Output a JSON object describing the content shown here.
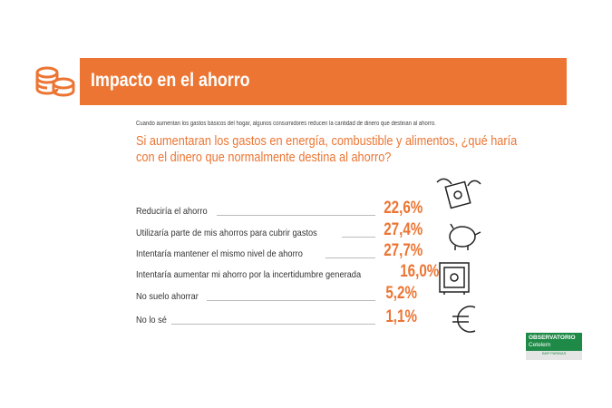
{
  "header": {
    "title": "Impacto en el ahorro"
  },
  "intro": "Cuando aumentan los gastos básicos del hogar, algunos consumidores reducen la cantidad de dinero que destinan al ahorro.",
  "question": "Si aumentaran los gastos en energía, combustible y alimentos, ¿qué haría con el dinero que normalmente destina al ahorro?",
  "rows": [
    {
      "label": "Reduciría el ahorro",
      "value": "22,6%"
    },
    {
      "label": "Utilizaría parte de mis ahorros para cubrir gastos",
      "value": "27,4%"
    },
    {
      "label": "Intentaría mantener el mismo nivel de ahorro",
      "value": "27,7%"
    },
    {
      "label": "Intentaría aumentar mi ahorro por la incertidumbre generada",
      "value": "16,0%"
    },
    {
      "label": "No suelo ahorrar",
      "value": "5,2%"
    },
    {
      "label": "No lo sé",
      "value": "1,1%"
    }
  ],
  "logo": {
    "line1": "OBSERVATORIO",
    "line2": "Cetelem",
    "line3": "BNP PARIBAS"
  },
  "colors": {
    "accent": "#ec7533",
    "brand": "#1f8a47"
  }
}
